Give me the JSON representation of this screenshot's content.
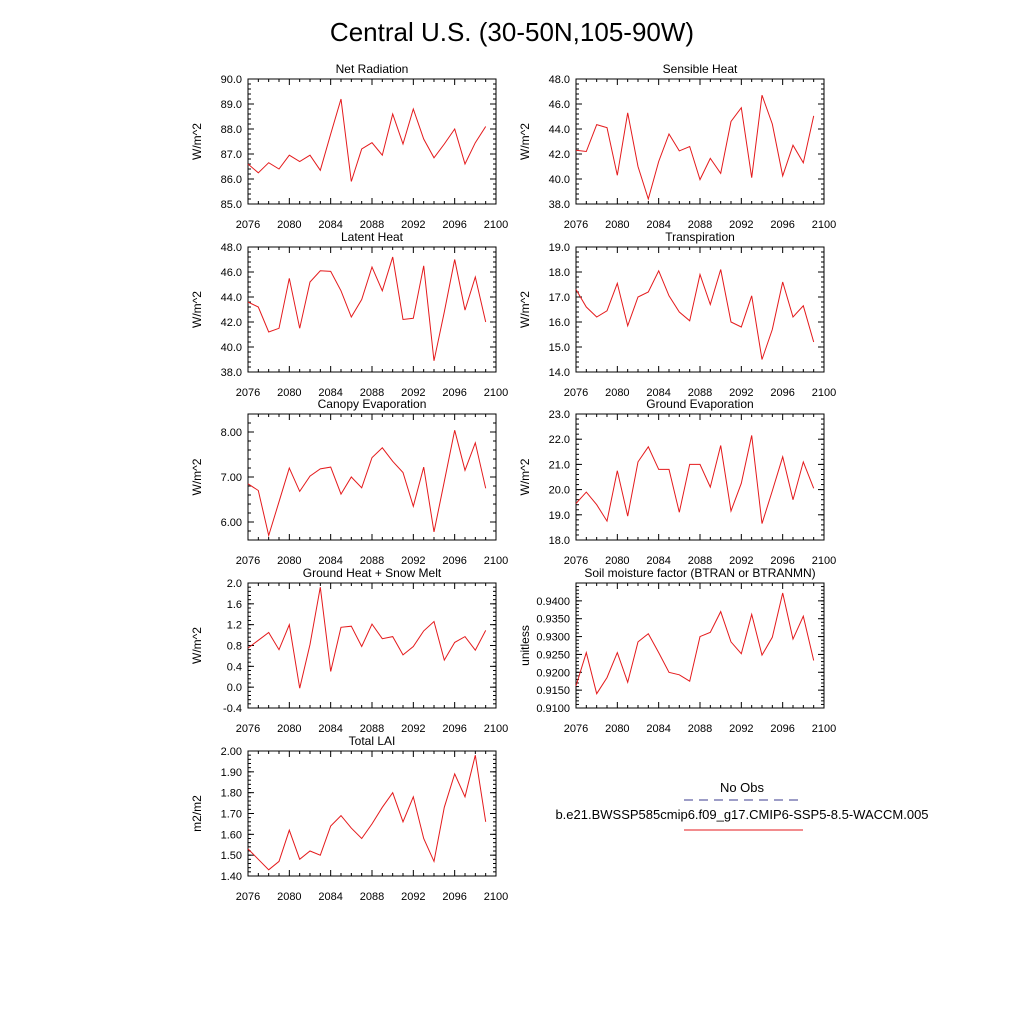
{
  "figure": {
    "title": "Central U.S. (30-50N,105-90W)",
    "legend": {
      "obs_label": "No Obs",
      "obs_color": "#3b3b8f",
      "model_label": "b.e21.BWSSP585cmip6.f09_g17.CMIP6-SSP5-8.5-WACCM.005",
      "model_color": "#e41a1c"
    }
  },
  "chart_data": [
    {
      "type": "line",
      "title": "Net Radiation",
      "ylabel": "W/m^2",
      "xlim": [
        2076,
        2100
      ],
      "ylim": [
        85.0,
        90.0
      ],
      "xticks": [
        "2076",
        "2080",
        "2084",
        "2088",
        "2092",
        "2096",
        "2100"
      ],
      "yticks": [
        "85.0",
        "86.0",
        "87.0",
        "88.0",
        "89.0",
        "90.0"
      ],
      "x": [
        2076,
        2077,
        2078,
        2079,
        2080,
        2081,
        2082,
        2083,
        2084,
        2085,
        2086,
        2087,
        2088,
        2089,
        2090,
        2091,
        2092,
        2093,
        2094,
        2095,
        2096,
        2097,
        2098,
        2099
      ],
      "series": [
        {
          "name": "b.e21.BWSSP585cmip6.f09_g17.CMIP6-SSP5-8.5-WACCM.005",
          "values": [
            86.6,
            86.25,
            86.65,
            86.4,
            86.95,
            86.7,
            86.95,
            86.35,
            87.8,
            89.2,
            85.9,
            87.2,
            87.45,
            86.95,
            88.6,
            87.4,
            88.8,
            87.6,
            86.85,
            87.4,
            88.0,
            86.6,
            87.45,
            88.1
          ]
        }
      ]
    },
    {
      "type": "line",
      "title": "Sensible Heat",
      "ylabel": "W/m^2",
      "xlim": [
        2076,
        2100
      ],
      "ylim": [
        38.0,
        48.0
      ],
      "xticks": [
        "2076",
        "2080",
        "2084",
        "2088",
        "2092",
        "2096",
        "2100"
      ],
      "yticks": [
        "38.0",
        "40.0",
        "42.0",
        "44.0",
        "46.0",
        "48.0"
      ],
      "x": [
        2076,
        2077,
        2078,
        2079,
        2080,
        2081,
        2082,
        2083,
        2084,
        2085,
        2086,
        2087,
        2088,
        2089,
        2090,
        2091,
        2092,
        2093,
        2094,
        2095,
        2096,
        2097,
        2098,
        2099
      ],
      "series": [
        {
          "name": "b.e21.BWSSP585cmip6.f09_g17.CMIP6-SSP5-8.5-WACCM.005",
          "values": [
            42.3,
            42.2,
            44.35,
            44.1,
            40.3,
            45.3,
            41.0,
            38.4,
            41.4,
            43.6,
            42.25,
            42.6,
            39.95,
            41.65,
            40.45,
            44.6,
            45.7,
            40.1,
            46.7,
            44.4,
            40.25,
            42.7,
            41.3,
            45.05
          ]
        }
      ]
    },
    {
      "type": "line",
      "title": "Latent Heat",
      "ylabel": "W/m^2",
      "xlim": [
        2076,
        2100
      ],
      "ylim": [
        38.0,
        48.0
      ],
      "xticks": [
        "2076",
        "2080",
        "2084",
        "2088",
        "2092",
        "2096",
        "2100"
      ],
      "yticks": [
        "38.0",
        "40.0",
        "42.0",
        "44.0",
        "46.0",
        "48.0"
      ],
      "x": [
        2076,
        2077,
        2078,
        2079,
        2080,
        2081,
        2082,
        2083,
        2084,
        2085,
        2086,
        2087,
        2088,
        2089,
        2090,
        2091,
        2092,
        2093,
        2094,
        2095,
        2096,
        2097,
        2098,
        2099
      ],
      "series": [
        {
          "name": "b.e21.BWSSP585cmip6.f09_g17.CMIP6-SSP5-8.5-WACCM.005",
          "values": [
            43.6,
            43.2,
            41.2,
            41.5,
            45.5,
            41.5,
            45.2,
            46.1,
            46.05,
            44.5,
            42.4,
            43.8,
            46.4,
            44.5,
            47.2,
            42.2,
            42.3,
            46.5,
            38.9,
            42.8,
            47.0,
            42.95,
            45.6,
            42.0
          ]
        }
      ]
    },
    {
      "type": "line",
      "title": "Transpiration",
      "ylabel": "W/m^2",
      "xlim": [
        2076,
        2100
      ],
      "ylim": [
        14.0,
        19.0
      ],
      "xticks": [
        "2076",
        "2080",
        "2084",
        "2088",
        "2092",
        "2096",
        "2100"
      ],
      "yticks": [
        "14.0",
        "15.0",
        "16.0",
        "17.0",
        "18.0",
        "19.0"
      ],
      "x": [
        2076,
        2077,
        2078,
        2079,
        2080,
        2081,
        2082,
        2083,
        2084,
        2085,
        2086,
        2087,
        2088,
        2089,
        2090,
        2091,
        2092,
        2093,
        2094,
        2095,
        2096,
        2097,
        2098,
        2099
      ],
      "series": [
        {
          "name": "b.e21.BWSSP585cmip6.f09_g17.CMIP6-SSP5-8.5-WACCM.005",
          "values": [
            17.3,
            16.6,
            16.2,
            16.45,
            17.55,
            15.85,
            17.0,
            17.2,
            18.05,
            17.05,
            16.4,
            16.05,
            17.9,
            16.7,
            18.1,
            16.0,
            15.8,
            17.05,
            14.5,
            15.7,
            17.6,
            16.2,
            16.65,
            15.2
          ]
        }
      ]
    },
    {
      "type": "line",
      "title": "Canopy Evaporation",
      "ylabel": "W/m^2",
      "xlim": [
        2076,
        2100
      ],
      "ylim": [
        5.6,
        8.4
      ],
      "xticks": [
        "2076",
        "2080",
        "2084",
        "2088",
        "2092",
        "2096",
        "2100"
      ],
      "yticks": [
        "6.00",
        "7.00",
        "8.00"
      ],
      "ytick_values": [
        6.0,
        7.0,
        8.0
      ],
      "x": [
        2076,
        2077,
        2078,
        2079,
        2080,
        2081,
        2082,
        2083,
        2084,
        2085,
        2086,
        2087,
        2088,
        2089,
        2090,
        2091,
        2092,
        2093,
        2094,
        2095,
        2096,
        2097,
        2098,
        2099
      ],
      "series": [
        {
          "name": "b.e21.BWSSP585cmip6.f09_g17.CMIP6-SSP5-8.5-WACCM.005",
          "values": [
            6.85,
            6.7,
            5.7,
            6.45,
            7.2,
            6.68,
            7.02,
            7.18,
            7.22,
            6.62,
            7.0,
            6.76,
            7.43,
            7.65,
            7.35,
            7.1,
            6.35,
            7.22,
            5.78,
            6.9,
            8.04,
            7.15,
            7.76,
            6.75
          ]
        }
      ]
    },
    {
      "type": "line",
      "title": "Ground Evaporation",
      "ylabel": "W/m^2",
      "xlim": [
        2076,
        2100
      ],
      "ylim": [
        18.0,
        23.0
      ],
      "xticks": [
        "2076",
        "2080",
        "2084",
        "2088",
        "2092",
        "2096",
        "2100"
      ],
      "yticks": [
        "18.0",
        "19.0",
        "20.0",
        "21.0",
        "22.0",
        "23.0"
      ],
      "x": [
        2076,
        2077,
        2078,
        2079,
        2080,
        2081,
        2082,
        2083,
        2084,
        2085,
        2086,
        2087,
        2088,
        2089,
        2090,
        2091,
        2092,
        2093,
        2094,
        2095,
        2096,
        2097,
        2098,
        2099
      ],
      "series": [
        {
          "name": "b.e21.BWSSP585cmip6.f09_g17.CMIP6-SSP5-8.5-WACCM.005",
          "values": [
            19.45,
            19.9,
            19.4,
            18.75,
            20.75,
            18.95,
            21.1,
            21.7,
            20.8,
            20.8,
            19.1,
            21.0,
            21.0,
            20.1,
            21.75,
            19.15,
            20.25,
            22.15,
            18.65,
            19.95,
            21.3,
            19.6,
            21.1,
            20.05
          ]
        }
      ]
    },
    {
      "type": "line",
      "title": "Ground Heat + Snow Melt",
      "ylabel": "W/m^2",
      "xlim": [
        2076,
        2100
      ],
      "ylim": [
        -0.4,
        2.0
      ],
      "xticks": [
        "2076",
        "2080",
        "2084",
        "2088",
        "2092",
        "2096",
        "2100"
      ],
      "yticks": [
        "-0.4",
        "0.0",
        "0.4",
        "0.8",
        "1.2",
        "1.6",
        "2.0"
      ],
      "x": [
        2076,
        2077,
        2078,
        2079,
        2080,
        2081,
        2082,
        2083,
        2084,
        2085,
        2086,
        2087,
        2088,
        2089,
        2090,
        2091,
        2092,
        2093,
        2094,
        2095,
        2096,
        2097,
        2098,
        2099
      ],
      "series": [
        {
          "name": "b.e21.BWSSP585cmip6.f09_g17.CMIP6-SSP5-8.5-WACCM.005",
          "values": [
            0.75,
            0.9,
            1.05,
            0.72,
            1.2,
            -0.02,
            0.82,
            1.92,
            0.3,
            1.15,
            1.17,
            0.78,
            1.21,
            0.93,
            0.97,
            0.62,
            0.78,
            1.08,
            1.26,
            0.52,
            0.86,
            0.97,
            0.71,
            1.09
          ]
        }
      ]
    },
    {
      "type": "line",
      "title": "Soil moisture factor (BTRAN or BTRANMN)",
      "ylabel": "unitless",
      "xlim": [
        2076,
        2100
      ],
      "ylim": [
        0.91,
        0.945
      ],
      "xticks": [
        "2076",
        "2080",
        "2084",
        "2088",
        "2092",
        "2096",
        "2100"
      ],
      "yticks": [
        "0.9100",
        "0.9150",
        "0.9200",
        "0.9250",
        "0.9300",
        "0.9350",
        "0.9400"
      ],
      "ytick_values": [
        0.91,
        0.915,
        0.92,
        0.925,
        0.93,
        0.935,
        0.94
      ],
      "x": [
        2076,
        2077,
        2078,
        2079,
        2080,
        2081,
        2082,
        2083,
        2084,
        2085,
        2086,
        2087,
        2088,
        2089,
        2090,
        2091,
        2092,
        2093,
        2094,
        2095,
        2096,
        2097,
        2098,
        2099
      ],
      "series": [
        {
          "name": "b.e21.BWSSP585cmip6.f09_g17.CMIP6-SSP5-8.5-WACCM.005",
          "values": [
            0.9162,
            0.9255,
            0.914,
            0.9185,
            0.9255,
            0.9172,
            0.9285,
            0.9308,
            0.9255,
            0.92,
            0.9193,
            0.9175,
            0.93,
            0.9312,
            0.937,
            0.9285,
            0.9252,
            0.9362,
            0.9248,
            0.9298,
            0.9422,
            0.9293,
            0.9357,
            0.9233
          ]
        }
      ]
    },
    {
      "type": "line",
      "title": "Total LAI",
      "ylabel": "m2/m2",
      "xlim": [
        2076,
        2100
      ],
      "ylim": [
        1.4,
        2.0
      ],
      "xticks": [
        "2076",
        "2080",
        "2084",
        "2088",
        "2092",
        "2096",
        "2100"
      ],
      "yticks": [
        "1.40",
        "1.50",
        "1.60",
        "1.70",
        "1.80",
        "1.90",
        "2.00"
      ],
      "x": [
        2076,
        2077,
        2078,
        2079,
        2080,
        2081,
        2082,
        2083,
        2084,
        2085,
        2086,
        2087,
        2088,
        2089,
        2090,
        2091,
        2092,
        2093,
        2094,
        2095,
        2096,
        2097,
        2098,
        2099
      ],
      "series": [
        {
          "name": "b.e21.BWSSP585cmip6.f09_g17.CMIP6-SSP5-8.5-WACCM.005",
          "values": [
            1.53,
            1.48,
            1.43,
            1.47,
            1.62,
            1.48,
            1.52,
            1.5,
            1.64,
            1.69,
            1.63,
            1.58,
            1.65,
            1.73,
            1.8,
            1.66,
            1.78,
            1.58,
            1.47,
            1.73,
            1.89,
            1.78,
            1.98,
            1.66
          ]
        }
      ]
    }
  ]
}
